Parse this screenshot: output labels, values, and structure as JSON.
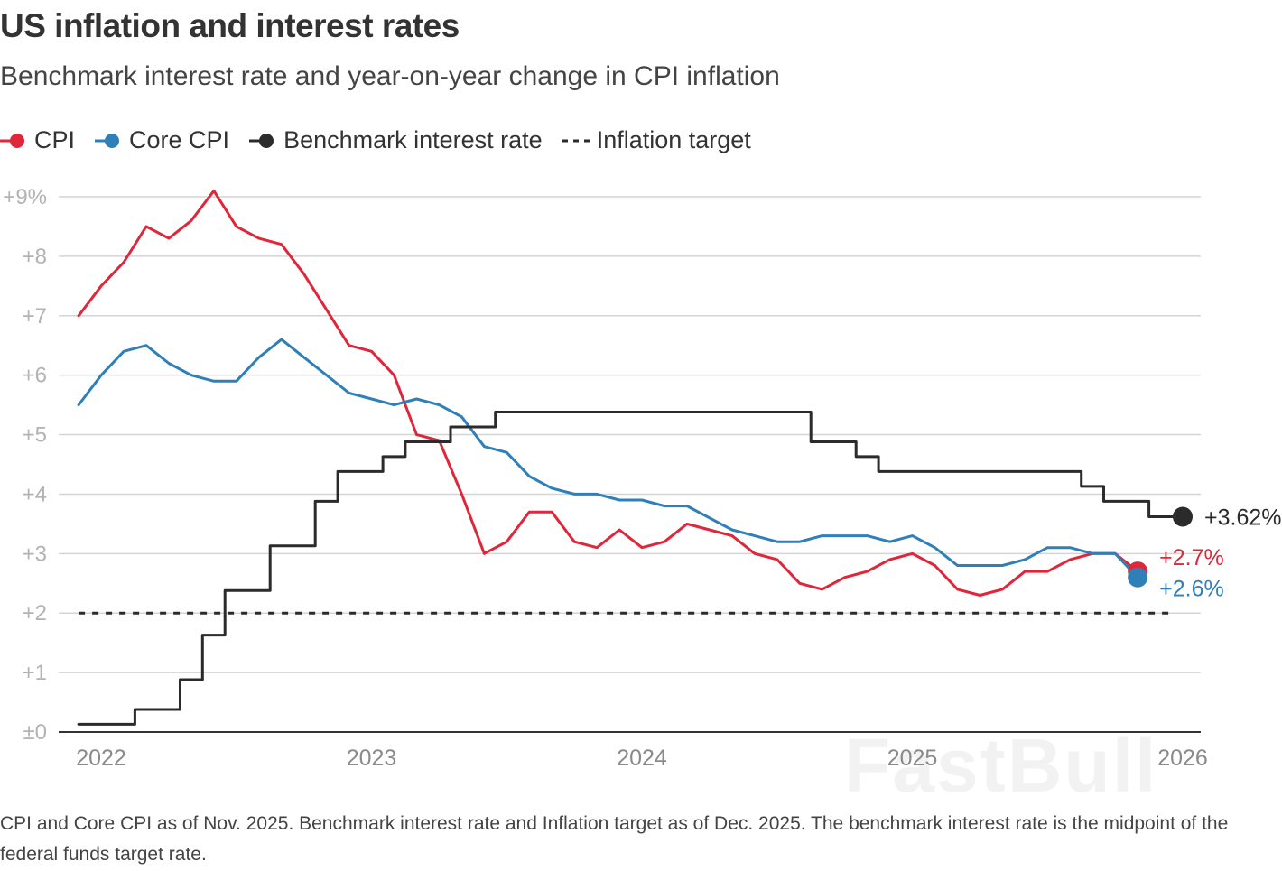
{
  "title": "US inflation and interest rates",
  "subtitle": "Benchmark interest rate and year-on-year change in CPI inflation",
  "legend": [
    {
      "label": "CPI",
      "color": "#e0263a",
      "style": "dot"
    },
    {
      "label": "Core CPI",
      "color": "#2f7fb8",
      "style": "dot"
    },
    {
      "label": "Benchmark interest rate",
      "color": "#2b2b2b",
      "style": "dot"
    },
    {
      "label": "Inflation target",
      "color": "#2b2b2b",
      "style": "dashed"
    }
  ],
  "footnote": "CPI and Core CPI as of Nov. 2025. Benchmark interest rate and Inflation target as of Dec. 2025. The benchmark interest rate is the midpoint of the federal funds target rate.",
  "watermark": "FastBull",
  "chart_data": {
    "type": "line",
    "title": "US inflation and interest rates",
    "xlabel": "",
    "ylabel": "",
    "ylim": [
      0,
      9
    ],
    "xlim": [
      2021.85,
      2026.1
    ],
    "y_ticks": [
      {
        "value": 0,
        "label": "±0"
      },
      {
        "value": 1,
        "label": "+1"
      },
      {
        "value": 2,
        "label": "+2"
      },
      {
        "value": 3,
        "label": "+3"
      },
      {
        "value": 4,
        "label": "+4"
      },
      {
        "value": 5,
        "label": "+5"
      },
      {
        "value": 6,
        "label": "+6"
      },
      {
        "value": 7,
        "label": "+7"
      },
      {
        "value": 8,
        "label": "+8"
      },
      {
        "value": 9,
        "label": "+9%"
      }
    ],
    "x_ticks": [
      {
        "value": 2022,
        "label": "2022"
      },
      {
        "value": 2023,
        "label": "2023"
      },
      {
        "value": 2024,
        "label": "2024"
      },
      {
        "value": 2025,
        "label": "2025"
      },
      {
        "value": 2026,
        "label": "2026"
      }
    ],
    "series": [
      {
        "name": "CPI",
        "color": "#e0263a",
        "start": 2021.917,
        "step": 0.08333,
        "values": [
          7.0,
          7.5,
          7.9,
          8.5,
          8.3,
          8.6,
          9.1,
          8.5,
          8.3,
          8.2,
          7.7,
          7.1,
          6.5,
          6.4,
          6.0,
          5.0,
          4.9,
          4.0,
          3.0,
          3.2,
          3.7,
          3.7,
          3.2,
          3.1,
          3.4,
          3.1,
          3.2,
          3.5,
          3.4,
          3.3,
          3.0,
          2.9,
          2.5,
          2.4,
          2.6,
          2.7,
          2.9,
          3.0,
          2.8,
          2.4,
          2.3,
          2.4,
          2.7,
          2.7,
          2.9,
          3.0,
          3.0,
          2.7
        ],
        "end_label": "+2.7%"
      },
      {
        "name": "Core CPI",
        "color": "#2f7fb8",
        "start": 2021.917,
        "step": 0.08333,
        "values": [
          5.5,
          6.0,
          6.4,
          6.5,
          6.2,
          6.0,
          5.9,
          5.9,
          6.3,
          6.6,
          6.3,
          6.0,
          5.7,
          5.6,
          5.5,
          5.6,
          5.5,
          5.3,
          4.8,
          4.7,
          4.3,
          4.1,
          4.0,
          4.0,
          3.9,
          3.9,
          3.8,
          3.8,
          3.6,
          3.4,
          3.3,
          3.2,
          3.2,
          3.3,
          3.3,
          3.3,
          3.2,
          3.3,
          3.1,
          2.8,
          2.8,
          2.8,
          2.9,
          3.1,
          3.1,
          3.0,
          3.0,
          2.6
        ],
        "end_label": "+2.6%"
      },
      {
        "name": "Benchmark interest rate",
        "color": "#2b2b2b",
        "step_line": true,
        "points": [
          [
            2021.917,
            0.13
          ],
          [
            2022.125,
            0.13
          ],
          [
            2022.125,
            0.38
          ],
          [
            2022.292,
            0.38
          ],
          [
            2022.292,
            0.88
          ],
          [
            2022.375,
            0.88
          ],
          [
            2022.375,
            1.63
          ],
          [
            2022.458,
            1.63
          ],
          [
            2022.458,
            2.38
          ],
          [
            2022.625,
            2.38
          ],
          [
            2022.625,
            3.13
          ],
          [
            2022.792,
            3.13
          ],
          [
            2022.792,
            3.88
          ],
          [
            2022.875,
            3.88
          ],
          [
            2022.875,
            4.38
          ],
          [
            2023.042,
            4.38
          ],
          [
            2023.042,
            4.63
          ],
          [
            2023.125,
            4.63
          ],
          [
            2023.125,
            4.88
          ],
          [
            2023.292,
            4.88
          ],
          [
            2023.292,
            5.13
          ],
          [
            2023.458,
            5.13
          ],
          [
            2023.458,
            5.38
          ],
          [
            2024.625,
            5.38
          ],
          [
            2024.625,
            4.88
          ],
          [
            2024.792,
            4.88
          ],
          [
            2024.792,
            4.63
          ],
          [
            2024.875,
            4.63
          ],
          [
            2024.875,
            4.38
          ],
          [
            2025.625,
            4.38
          ],
          [
            2025.625,
            4.13
          ],
          [
            2025.708,
            4.13
          ],
          [
            2025.708,
            3.88
          ],
          [
            2025.875,
            3.88
          ],
          [
            2025.875,
            3.62
          ],
          [
            2026.0,
            3.62
          ]
        ],
        "end_label": "+3.62%"
      },
      {
        "name": "Inflation target",
        "color": "#2b2b2b",
        "dashed": true,
        "points": [
          [
            2021.917,
            2.0
          ],
          [
            2025.958,
            2.0
          ]
        ]
      }
    ]
  }
}
